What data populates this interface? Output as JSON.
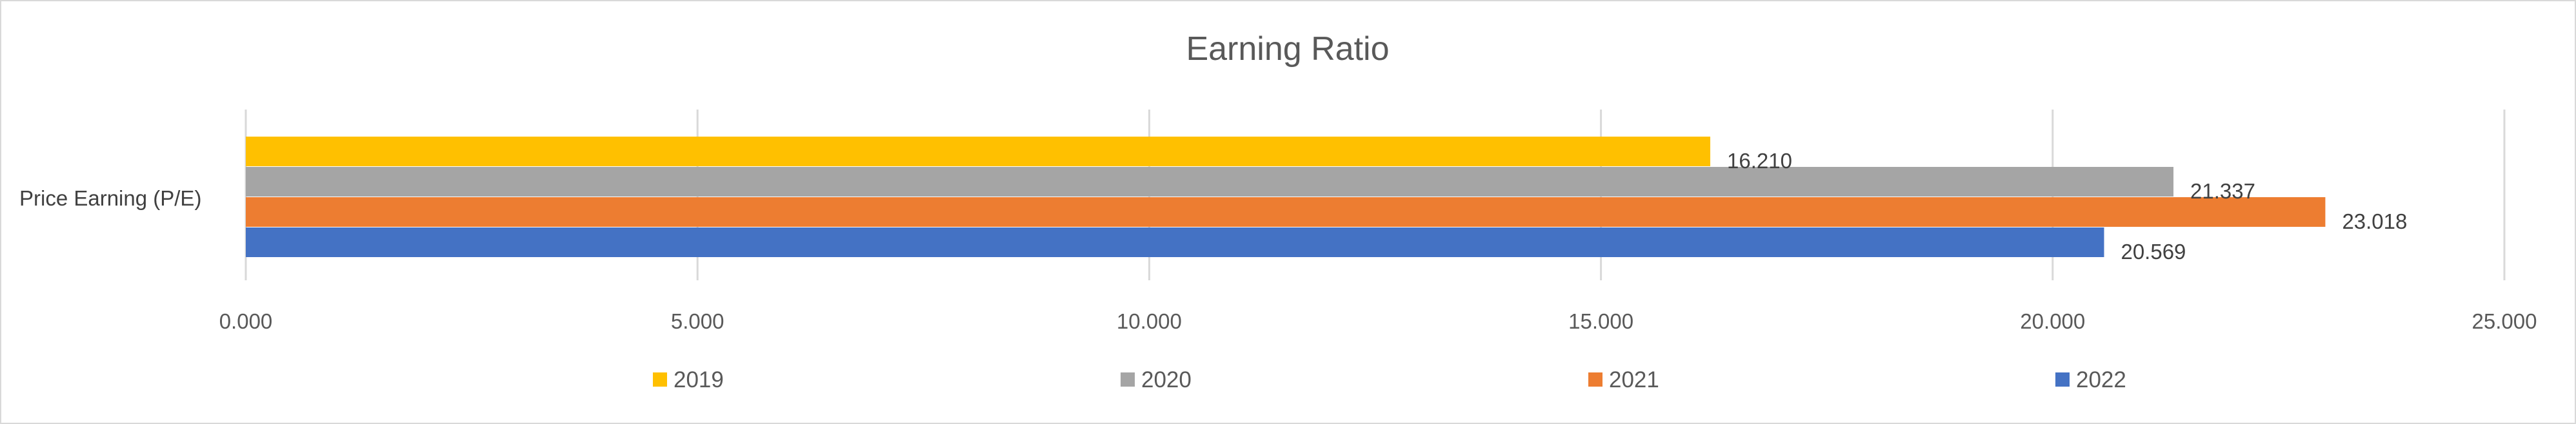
{
  "chart_data": {
    "type": "bar",
    "orientation": "horizontal",
    "title": "Earning Ratio",
    "categories": [
      "Price Earning (P/E)"
    ],
    "series": [
      {
        "name": "2019",
        "color": "#ffc000",
        "values": [
          16.21
        ],
        "label": "16.210"
      },
      {
        "name": "2020",
        "color": "#a5a5a5",
        "values": [
          21.337
        ],
        "label": "21.337"
      },
      {
        "name": "2021",
        "color": "#ed7d31",
        "values": [
          23.018
        ],
        "label": "23.018"
      },
      {
        "name": "2022",
        "color": "#4472c4",
        "values": [
          20.569
        ],
        "label": "20.569"
      }
    ],
    "xlim": [
      0,
      25
    ],
    "x_ticks": [
      0,
      5,
      10,
      15,
      20,
      25
    ],
    "x_tick_labels": [
      "0.000",
      "5.000",
      "10.000",
      "15.000",
      "20.000",
      "25.000"
    ],
    "grid": true,
    "legend_position": "bottom"
  }
}
